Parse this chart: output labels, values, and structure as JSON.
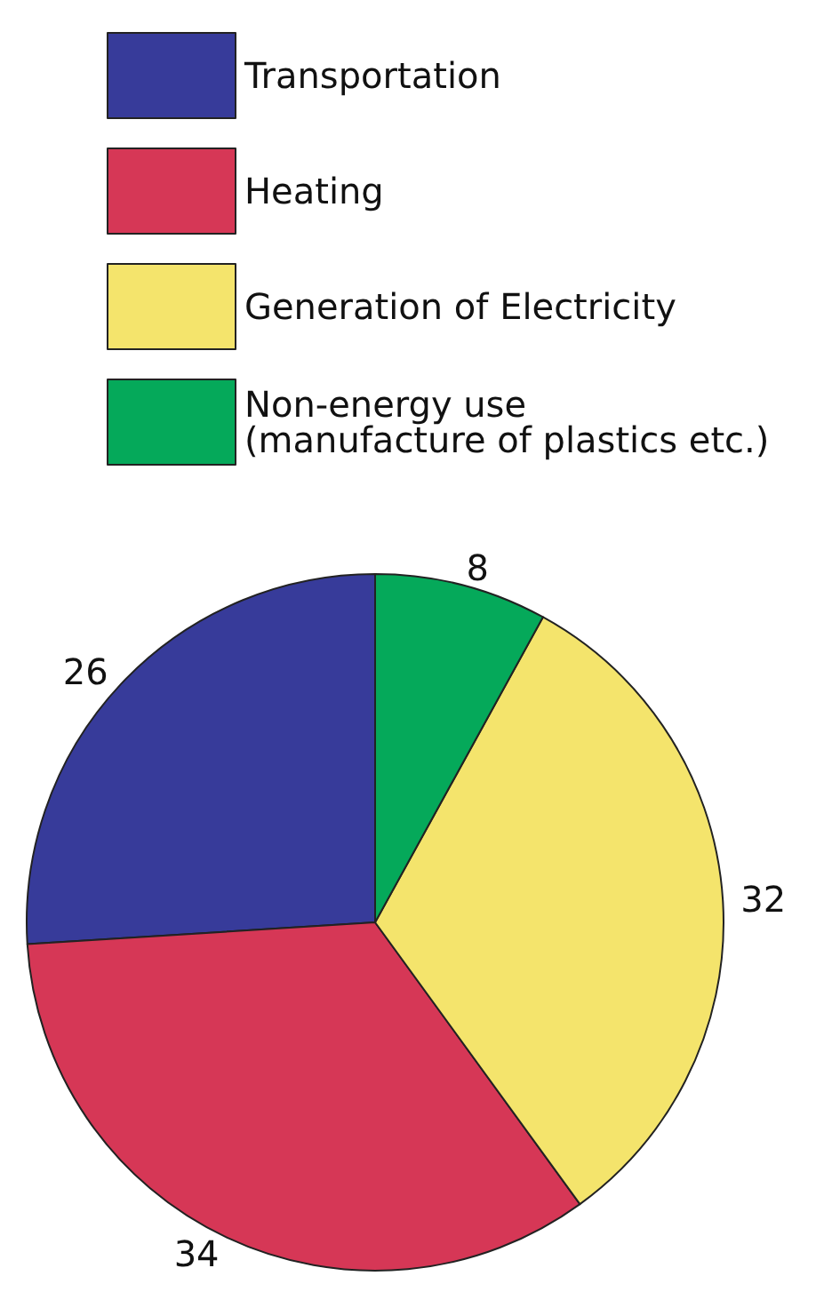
{
  "chart_data": {
    "type": "pie",
    "categories": [
      "Transportation",
      "Heating",
      "Generation of Electricity",
      "Non-energy use\n(manufacture of plastics etc.)"
    ],
    "values": [
      26,
      34,
      32,
      8
    ],
    "colors": [
      "#373b9a",
      "#d63756",
      "#f4e46c",
      "#05a95a"
    ],
    "data_labels": true,
    "legend": "top"
  }
}
